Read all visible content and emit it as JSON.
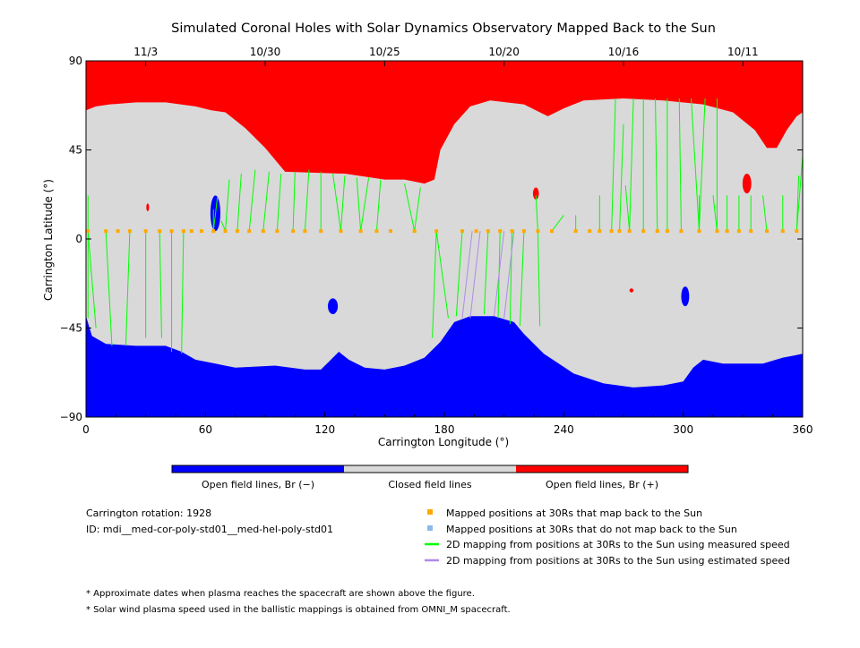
{
  "chart_data": {
    "type": "map",
    "title": "Simulated Coronal Holes with Solar Dynamics Observatory Mapped Back to the Sun",
    "xlabel": "Carrington Longitude (°)",
    "ylabel": "Carrington Latitude (°)",
    "xlim": [
      0,
      360
    ],
    "ylim": [
      -90,
      90
    ],
    "xticks": [
      "0",
      "60",
      "120",
      "180",
      "240",
      "300",
      "360"
    ],
    "yticks": [
      "−90",
      "−45",
      "0",
      "45",
      "90"
    ],
    "top_date_labels": [
      {
        "label": "11/3",
        "lon": 30
      },
      {
        "label": "10/30",
        "lon": 90
      },
      {
        "label": "10/25",
        "lon": 150
      },
      {
        "label": "10/20",
        "lon": 210
      },
      {
        "label": "10/16",
        "lon": 270
      },
      {
        "label": "10/11",
        "lon": 330
      }
    ],
    "colors": {
      "open_negative": "#0000ff",
      "closed": "#d9d9d9",
      "open_positive": "#ff0000",
      "mapped_back": "#ffaa00",
      "not_mapped": "#88bbee",
      "measured_speed_line": "#00ff00",
      "estimated_speed_line": "#b08ae6"
    },
    "colorbar_labels": [
      "Open field lines, Br (−)",
      "Closed field lines",
      "Open field lines, Br (+)"
    ],
    "north_boundary": [
      [
        0,
        65
      ],
      [
        5,
        67
      ],
      [
        12,
        68
      ],
      [
        25,
        69
      ],
      [
        40,
        69
      ],
      [
        55,
        67
      ],
      [
        63,
        65
      ],
      [
        70,
        64
      ],
      [
        80,
        56
      ],
      [
        90,
        46
      ],
      [
        100,
        34
      ],
      [
        130,
        33
      ],
      [
        150,
        30
      ],
      [
        160,
        30
      ],
      [
        170,
        28
      ],
      [
        175,
        30
      ],
      [
        178,
        45
      ],
      [
        185,
        58
      ],
      [
        193,
        67
      ],
      [
        203,
        70
      ],
      [
        220,
        68
      ],
      [
        232,
        62
      ],
      [
        240,
        66
      ],
      [
        250,
        70
      ],
      [
        270,
        71
      ],
      [
        290,
        70
      ],
      [
        310,
        68
      ],
      [
        325,
        64
      ],
      [
        336,
        55
      ],
      [
        342,
        46
      ],
      [
        347,
        46
      ],
      [
        352,
        55
      ],
      [
        357,
        62
      ],
      [
        360,
        64
      ]
    ],
    "south_boundary": [
      [
        0,
        -39
      ],
      [
        3,
        -49
      ],
      [
        10,
        -53
      ],
      [
        25,
        -54
      ],
      [
        40,
        -54
      ],
      [
        48,
        -57
      ],
      [
        55,
        -61
      ],
      [
        65,
        -63
      ],
      [
        75,
        -65
      ],
      [
        95,
        -64
      ],
      [
        110,
        -66
      ],
      [
        118,
        -66
      ],
      [
        122,
        -62
      ],
      [
        127,
        -57
      ],
      [
        132,
        -61
      ],
      [
        140,
        -65
      ],
      [
        150,
        -66
      ],
      [
        160,
        -64
      ],
      [
        170,
        -60
      ],
      [
        178,
        -52
      ],
      [
        185,
        -42
      ],
      [
        193,
        -39
      ],
      [
        205,
        -39
      ],
      [
        215,
        -42
      ],
      [
        220,
        -48
      ],
      [
        230,
        -58
      ],
      [
        245,
        -68
      ],
      [
        260,
        -73
      ],
      [
        275,
        -75
      ],
      [
        290,
        -74
      ],
      [
        300,
        -72
      ],
      [
        305,
        -65
      ],
      [
        310,
        -61
      ],
      [
        320,
        -63
      ],
      [
        330,
        -63
      ],
      [
        340,
        -63
      ],
      [
        350,
        -60
      ],
      [
        355,
        -59
      ],
      [
        360,
        -58
      ]
    ],
    "mapped_positions_lon": [
      1,
      10,
      16,
      22,
      30,
      37,
      43,
      49,
      53,
      58,
      64,
      70,
      76,
      82,
      89,
      96,
      104,
      110,
      118,
      128,
      138,
      146,
      153,
      165,
      176,
      189,
      196,
      202,
      208,
      214,
      220,
      227,
      234,
      246,
      253,
      258,
      264,
      268,
      273,
      280,
      287,
      292,
      299,
      308,
      317,
      322,
      328,
      334,
      342,
      350,
      357
    ],
    "mapped_latitude": 4,
    "measured_mappings": [
      [
        1,
        -3,
        -40
      ],
      [
        5,
        -3,
        -45
      ],
      [
        13,
        -3,
        -54
      ],
      [
        20,
        -3,
        -54
      ],
      [
        30,
        -3,
        -50
      ],
      [
        38,
        -3,
        -50
      ],
      [
        43,
        -3,
        -57
      ],
      [
        48,
        -3,
        -58
      ],
      [
        1,
        4,
        22
      ],
      [
        64,
        4,
        15
      ],
      [
        68,
        4,
        9
      ],
      [
        66,
        4,
        21
      ],
      [
        72,
        4,
        30
      ],
      [
        78,
        4,
        33
      ],
      [
        85,
        4,
        35
      ],
      [
        92,
        4,
        34
      ],
      [
        98,
        4,
        33
      ],
      [
        105,
        4,
        34
      ],
      [
        112,
        4,
        35
      ],
      [
        118,
        4,
        34
      ],
      [
        124,
        4,
        33
      ],
      [
        130,
        4,
        32
      ],
      [
        136,
        4,
        31
      ],
      [
        142,
        4,
        31
      ],
      [
        148,
        4,
        30
      ],
      [
        160,
        4,
        28
      ],
      [
        168,
        4,
        26
      ],
      [
        174,
        4,
        -50
      ],
      [
        182,
        4,
        -40
      ],
      [
        186,
        4,
        -39
      ],
      [
        200,
        4,
        -38
      ],
      [
        207,
        4,
        -40
      ],
      [
        213,
        4,
        -43
      ],
      [
        218,
        4,
        -44
      ],
      [
        228,
        4,
        -44
      ],
      [
        226,
        4,
        22
      ],
      [
        240,
        4,
        12
      ],
      [
        246,
        4,
        12
      ],
      [
        258,
        4,
        22
      ],
      [
        266,
        4,
        71
      ],
      [
        270,
        4,
        58
      ],
      [
        271,
        4,
        27
      ],
      [
        275,
        4,
        71
      ],
      [
        280,
        4,
        71
      ],
      [
        286,
        4,
        71
      ],
      [
        292,
        4,
        71
      ],
      [
        298,
        4,
        71
      ],
      [
        304,
        4,
        71
      ],
      [
        311,
        4,
        71
      ],
      [
        317,
        4,
        71
      ],
      [
        308,
        4,
        22
      ],
      [
        315,
        4,
        22
      ],
      [
        322,
        4,
        22
      ],
      [
        328,
        4,
        22
      ],
      [
        334,
        4,
        22
      ],
      [
        340,
        4,
        22
      ],
      [
        350,
        4,
        22
      ],
      [
        358,
        4,
        32
      ],
      [
        360,
        4,
        42
      ]
    ],
    "estimated_mappings": [
      [
        189,
        4,
        -40
      ],
      [
        193,
        4,
        -40
      ],
      [
        205,
        4,
        -39
      ],
      [
        210,
        4,
        -40
      ]
    ],
    "holes": [
      {
        "sign": "negative",
        "lon": 65,
        "lat": 13,
        "dlon": 2.5,
        "dlat": 9
      },
      {
        "sign": "negative",
        "lon": 124,
        "lat": -34,
        "dlon": 2.5,
        "dlat": 4
      },
      {
        "sign": "negative",
        "lon": 301,
        "lat": -29,
        "dlon": 2,
        "dlat": 5
      },
      {
        "sign": "positive",
        "lon": 226,
        "lat": 23,
        "dlon": 1.5,
        "dlat": 3
      },
      {
        "sign": "positive",
        "lon": 332,
        "lat": 28,
        "dlon": 2.2,
        "dlat": 5
      },
      {
        "sign": "positive",
        "lon": 31,
        "lat": 16,
        "dlon": 0.7,
        "dlat": 2
      },
      {
        "sign": "positive",
        "lon": 274,
        "lat": -26,
        "dlon": 1,
        "dlat": 1
      }
    ]
  },
  "legend": {
    "carrington_rotation": "Carrington rotation: 1928",
    "id": "ID: mdi__med-cor-poly-std01__med-hel-poly-std01",
    "items": [
      {
        "label": "Mapped positions at 30Rs that map back to the Sun",
        "kind": "square",
        "color": "#ffaa00"
      },
      {
        "label": "Mapped positions at 30Rs that do not map back to the Sun",
        "kind": "square",
        "color": "#88bbee"
      },
      {
        "label": "2D mapping from positions at 30Rs to the Sun using measured speed",
        "kind": "line",
        "color": "#00ff00"
      },
      {
        "label": "2D mapping from positions at 30Rs to the Sun using estimated speed",
        "kind": "line",
        "color": "#b08ae6"
      }
    ]
  },
  "footnotes": [
    "* Approximate dates when plasma reaches the spacecraft are shown above the figure.",
    "* Solar wind plasma speed used in the ballistic mappings is obtained from OMNI_M spacecraft."
  ]
}
